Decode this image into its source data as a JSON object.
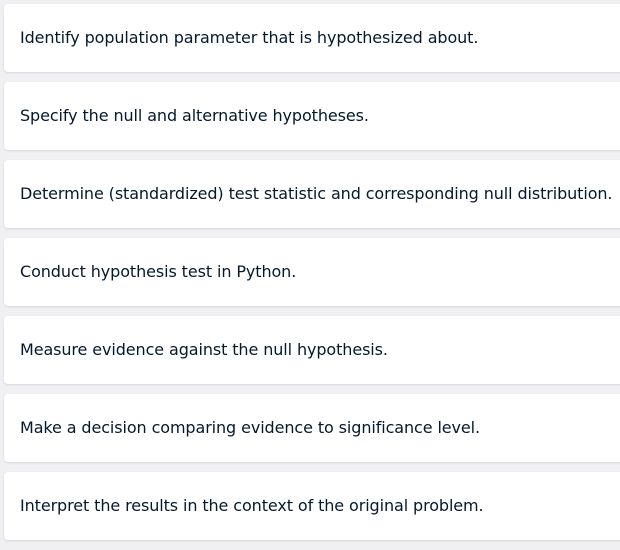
{
  "steps": [
    {
      "text": "Identify population parameter that is hypothesized about."
    },
    {
      "text": "Specify the null and alternative hypotheses."
    },
    {
      "text": "Determine (standardized) test statistic and corresponding null distribution."
    },
    {
      "text": "Conduct hypothesis test in Python."
    },
    {
      "text": "Measure evidence against the null hypothesis."
    },
    {
      "text": "Make a decision comparing evidence to significance level."
    },
    {
      "text": "Interpret the results in the context of the original problem."
    }
  ]
}
